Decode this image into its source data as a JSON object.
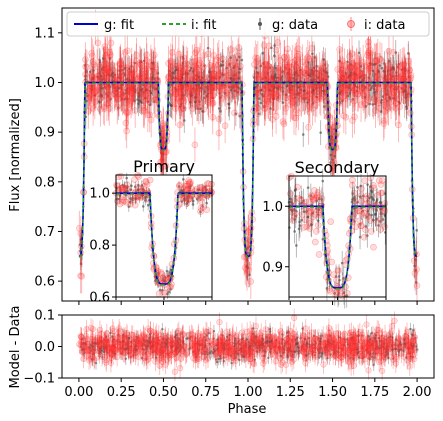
{
  "chart_data": [
    {
      "type": "scatter",
      "panel": "main",
      "title": "",
      "xlabel": "",
      "ylabel": "Flux [normalized]",
      "xlim": [
        -0.1,
        2.1
      ],
      "ylim": [
        0.56,
        1.15
      ],
      "grid": false,
      "legend_location": "top",
      "yticks": [
        0.6,
        0.7,
        0.8,
        0.9,
        1.0,
        1.1
      ],
      "ytick_labels": [
        "0.6",
        "0.7",
        "0.8",
        "0.9",
        "1.0",
        "1.1"
      ],
      "xticks": [
        0.0,
        0.25,
        0.5,
        0.75,
        1.0,
        1.25,
        1.5,
        1.75,
        2.0
      ],
      "series": [
        {
          "name": "g: fit",
          "kind": "line",
          "style": "solid",
          "color": "#0000cc"
        },
        {
          "name": "i: fit",
          "kind": "line",
          "style": "dashed",
          "color": "#2ca02c"
        },
        {
          "name": "g: data",
          "kind": "errorbar",
          "color": "#555555"
        },
        {
          "name": "i: data",
          "kind": "errorbar",
          "color": "#ff3333"
        }
      ],
      "model": {
        "baseline": 1.0,
        "primary_eclipse": {
          "phase": [
            0.0,
            1.0,
            2.0
          ],
          "min_flux": 0.65,
          "half_width": 0.035
        },
        "secondary_eclipse": {
          "phase": [
            0.5,
            1.5
          ],
          "min_flux": 0.865,
          "half_width": 0.03
        },
        "scatter_sigma": 0.025
      }
    },
    {
      "type": "scatter",
      "panel": "inset-primary",
      "title": "Primary",
      "xlim": [
        -0.12,
        0.12
      ],
      "ylim": [
        0.6,
        1.07
      ],
      "yticks": [
        0.6,
        0.8,
        1.0
      ],
      "ytick_labels": [
        "0.6",
        "0.8",
        "1.0"
      ],
      "model": {
        "center": 0.0,
        "min_flux": 0.65,
        "half_width": 0.035
      }
    },
    {
      "type": "scatter",
      "panel": "inset-secondary",
      "title": "Secondary",
      "xlim": [
        -0.1,
        0.1
      ],
      "ylim": [
        0.85,
        1.05
      ],
      "yticks": [
        0.9,
        1.0
      ],
      "ytick_labels": [
        "0.9",
        "1.0"
      ],
      "model": {
        "center": 0.0,
        "min_flux": 0.865,
        "half_width": 0.03
      }
    },
    {
      "type": "scatter",
      "panel": "residuals",
      "xlabel": "Phase",
      "ylabel": "Model - Data",
      "xlim": [
        -0.1,
        2.1
      ],
      "ylim": [
        -0.1,
        0.1
      ],
      "yticks": [
        0.1,
        0.0,
        -0.1
      ],
      "ytick_labels": [
        "0.1",
        "0.0",
        "−0.1"
      ],
      "xticks": [
        0.0,
        0.25,
        0.5,
        0.75,
        1.0,
        1.25,
        1.5,
        1.75,
        2.0
      ],
      "xtick_labels": [
        "0.00",
        "0.25",
        "0.50",
        "0.75",
        "1.00",
        "1.25",
        "1.50",
        "1.75",
        "2.00"
      ],
      "residual_sigma": 0.025
    }
  ]
}
